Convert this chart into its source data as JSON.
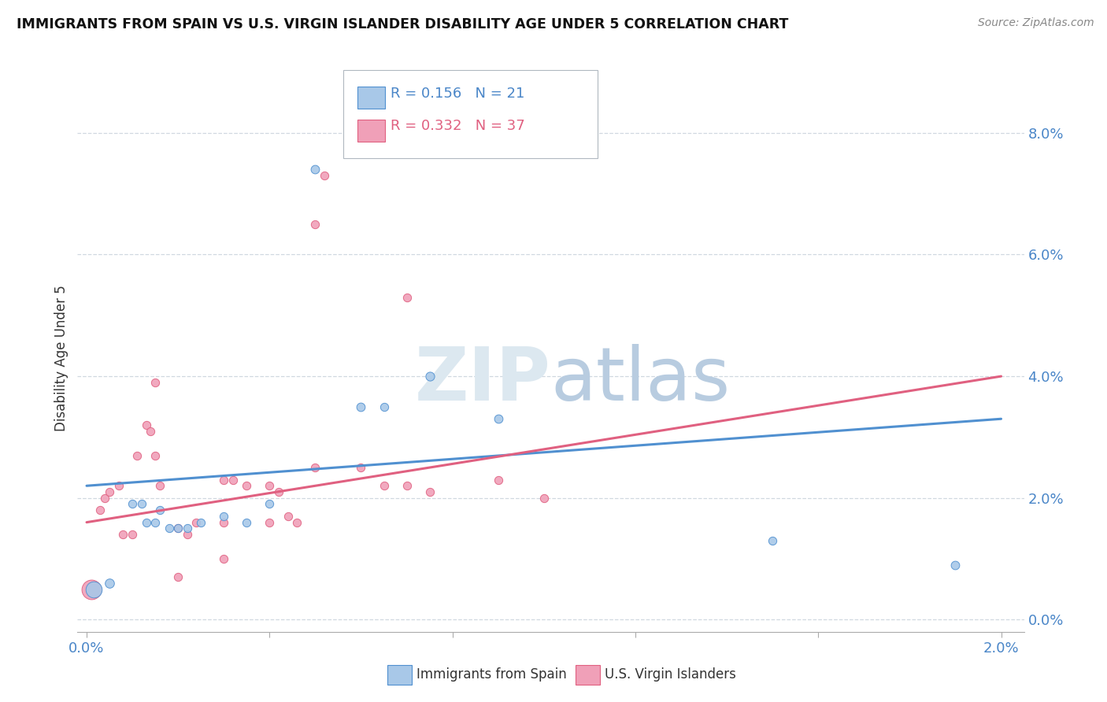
{
  "title": "IMMIGRANTS FROM SPAIN VS U.S. VIRGIN ISLANDER DISABILITY AGE UNDER 5 CORRELATION CHART",
  "source": "Source: ZipAtlas.com",
  "ylabel": "Disability Age Under 5",
  "right_yticks": [
    "0.0%",
    "2.0%",
    "4.0%",
    "6.0%",
    "8.0%"
  ],
  "right_ytick_vals": [
    0.0,
    0.02,
    0.04,
    0.06,
    0.08
  ],
  "xlim": [
    -0.0002,
    0.0205
  ],
  "ylim": [
    -0.002,
    0.088
  ],
  "legend1_label": "Immigrants from Spain",
  "legend2_label": "U.S. Virgin Islanders",
  "r1": 0.156,
  "n1": 21,
  "r2": 0.332,
  "n2": 37,
  "color_blue": "#a8c8e8",
  "color_pink": "#f0a0b8",
  "color_blue_line": "#5090d0",
  "color_pink_line": "#e06080",
  "watermark_color": "#dce8f0",
  "blue_points": [
    [
      0.00015,
      0.005,
      220
    ],
    [
      0.0005,
      0.006,
      70
    ],
    [
      0.001,
      0.019,
      55
    ],
    [
      0.0012,
      0.019,
      55
    ],
    [
      0.0013,
      0.016,
      55
    ],
    [
      0.0015,
      0.016,
      55
    ],
    [
      0.0016,
      0.018,
      55
    ],
    [
      0.0018,
      0.015,
      55
    ],
    [
      0.002,
      0.015,
      55
    ],
    [
      0.0022,
      0.015,
      55
    ],
    [
      0.0025,
      0.016,
      55
    ],
    [
      0.003,
      0.017,
      55
    ],
    [
      0.0035,
      0.016,
      55
    ],
    [
      0.004,
      0.019,
      55
    ],
    [
      0.005,
      0.074,
      60
    ],
    [
      0.006,
      0.035,
      60
    ],
    [
      0.0065,
      0.035,
      55
    ],
    [
      0.0075,
      0.04,
      65
    ],
    [
      0.009,
      0.033,
      60
    ],
    [
      0.015,
      0.013,
      55
    ],
    [
      0.019,
      0.009,
      60
    ]
  ],
  "pink_points": [
    [
      0.0001,
      0.005,
      320
    ],
    [
      0.0003,
      0.018,
      55
    ],
    [
      0.0004,
      0.02,
      55
    ],
    [
      0.0005,
      0.021,
      55
    ],
    [
      0.0007,
      0.022,
      55
    ],
    [
      0.0008,
      0.014,
      55
    ],
    [
      0.001,
      0.014,
      55
    ],
    [
      0.0011,
      0.027,
      55
    ],
    [
      0.0013,
      0.032,
      55
    ],
    [
      0.0014,
      0.031,
      55
    ],
    [
      0.0015,
      0.027,
      55
    ],
    [
      0.0016,
      0.022,
      55
    ],
    [
      0.002,
      0.015,
      55
    ],
    [
      0.0022,
      0.014,
      55
    ],
    [
      0.0024,
      0.016,
      55
    ],
    [
      0.003,
      0.023,
      55
    ],
    [
      0.0032,
      0.023,
      55
    ],
    [
      0.0035,
      0.022,
      55
    ],
    [
      0.004,
      0.022,
      55
    ],
    [
      0.0042,
      0.021,
      55
    ],
    [
      0.0044,
      0.017,
      55
    ],
    [
      0.0046,
      0.016,
      55
    ],
    [
      0.005,
      0.025,
      55
    ],
    [
      0.005,
      0.065,
      55
    ],
    [
      0.0052,
      0.073,
      55
    ],
    [
      0.006,
      0.025,
      55
    ],
    [
      0.0065,
      0.022,
      55
    ],
    [
      0.007,
      0.053,
      55
    ],
    [
      0.0075,
      0.021,
      55
    ],
    [
      0.009,
      0.023,
      55
    ],
    [
      0.01,
      0.02,
      55
    ],
    [
      0.002,
      0.007,
      55
    ],
    [
      0.003,
      0.01,
      55
    ],
    [
      0.0015,
      0.039,
      55
    ],
    [
      0.003,
      0.016,
      55
    ],
    [
      0.004,
      0.016,
      55
    ],
    [
      0.007,
      0.022,
      55
    ]
  ]
}
